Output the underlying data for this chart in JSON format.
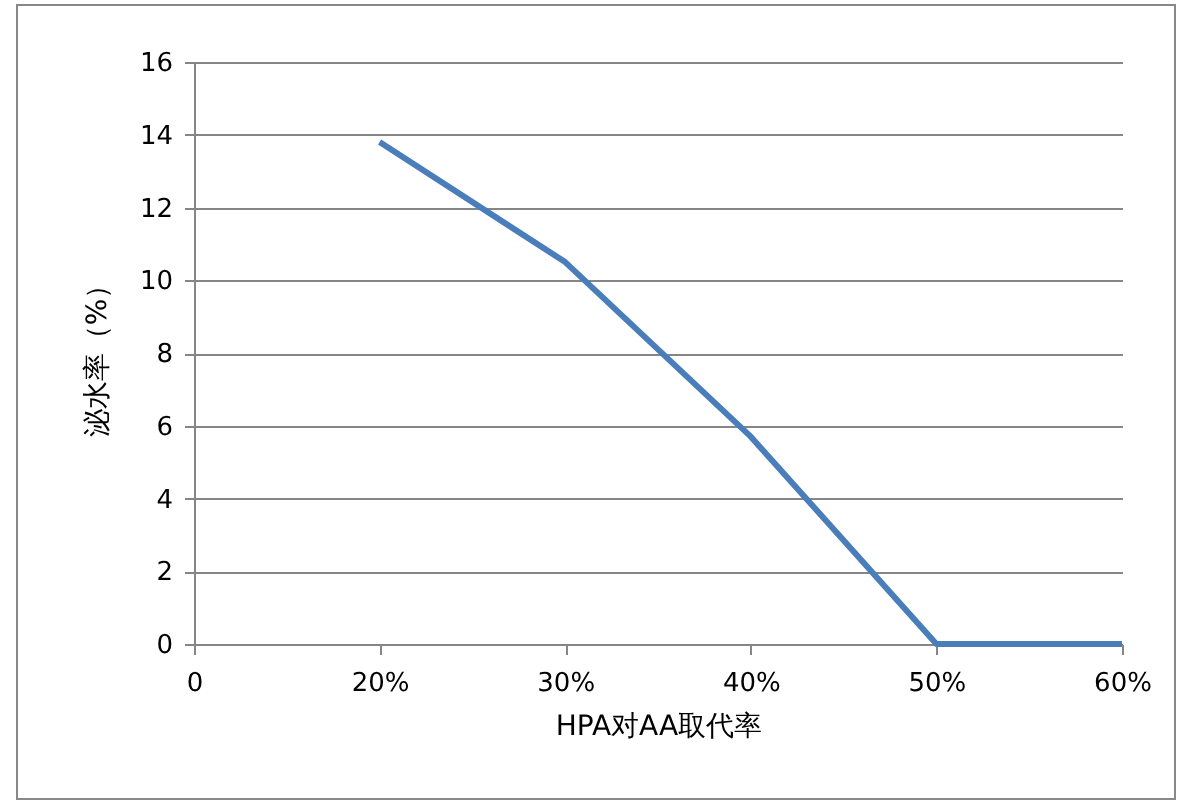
{
  "chart_data": {
    "type": "line",
    "xlabel": "HPA对AA取代率",
    "ylabel": "泌水率（%）",
    "categories": [
      "0",
      "20%",
      "30%",
      "40%",
      "50%",
      "60%"
    ],
    "series": [
      {
        "color": "#4a7ebb",
        "values": [
          null,
          13.8,
          10.5,
          5.7,
          0,
          0
        ]
      }
    ],
    "ylim": [
      0,
      16
    ],
    "yticks": [
      0,
      2,
      4,
      6,
      8,
      10,
      12,
      14,
      16
    ],
    "grid": "y",
    "legend": false,
    "marker": "none",
    "line_style": "solid"
  }
}
